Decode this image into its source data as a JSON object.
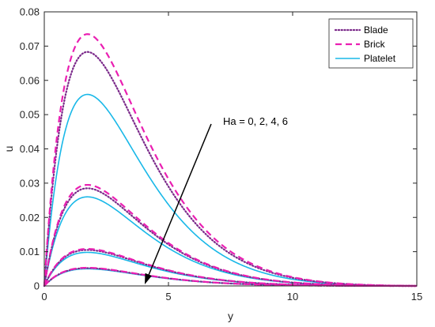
{
  "chart_data": {
    "type": "line",
    "title": "",
    "xlabel": "y",
    "ylabel": "u",
    "xlim": [
      0,
      15
    ],
    "ylim": [
      0,
      0.08
    ],
    "x_ticks": [
      "0",
      "5",
      "10",
      "15"
    ],
    "y_ticks": [
      "0",
      "0.01",
      "0.02",
      "0.03",
      "0.04",
      "0.05",
      "0.06",
      "0.07",
      "0.08"
    ],
    "grid": false,
    "legend_position": "top-right",
    "annotation": "Ha = 0, 2, 4, 6",
    "profile_shape": "u = A * y * exp(-y / 2) * (15 - y) / 13, peak near y = 2",
    "series": [
      {
        "name": "Blade",
        "color": "#7b2a8a",
        "style": "dotted",
        "peaks": [
          0.0683,
          0.0285,
          0.0105,
          0.0052
        ]
      },
      {
        "name": "Brick",
        "color": "#ea1fb2",
        "style": "dashed",
        "peaks": [
          0.0735,
          0.0295,
          0.0108,
          0.0053
        ]
      },
      {
        "name": "Platelet",
        "color": "#19b8e8",
        "style": "solid",
        "peaks": [
          0.0559,
          0.026,
          0.0098,
          0.005
        ]
      }
    ]
  }
}
